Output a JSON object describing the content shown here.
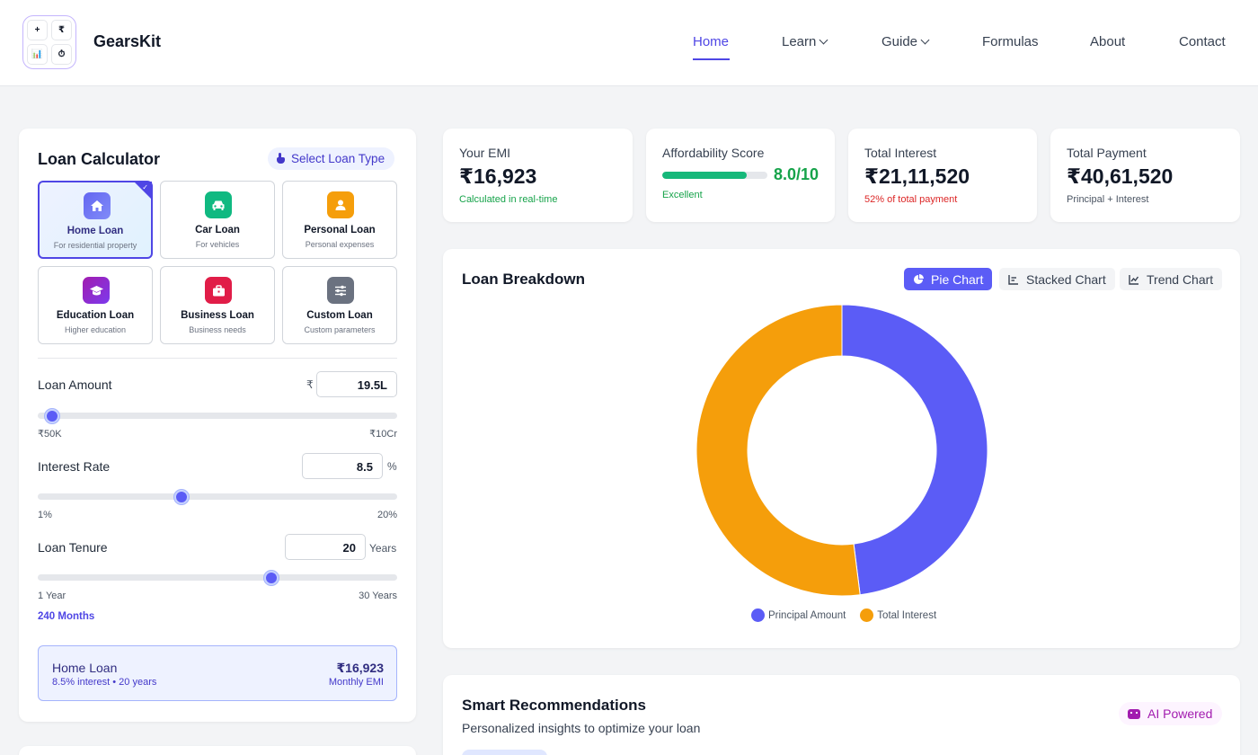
{
  "brand": {
    "name": "GearsKit",
    "logo_cells": [
      "+",
      "₹",
      "📊",
      "⏱"
    ]
  },
  "nav": {
    "items": [
      {
        "label": "Home",
        "active": true
      },
      {
        "label": "Learn",
        "dropdown": true
      },
      {
        "label": "Guide",
        "dropdown": true
      },
      {
        "label": "Formulas"
      },
      {
        "label": "About"
      },
      {
        "label": "Contact"
      }
    ]
  },
  "calculator": {
    "title": "Loan Calculator",
    "select_type_label": "Select Loan Type",
    "loan_types": [
      {
        "name": "Home Loan",
        "sub": "For residential property",
        "icon": "home-icon",
        "color": "#6366f1",
        "active": true
      },
      {
        "name": "Car Loan",
        "sub": "For vehicles",
        "icon": "car-icon",
        "color": "#10b981"
      },
      {
        "name": "Personal Loan",
        "sub": "Personal expenses",
        "icon": "user-icon",
        "color": "#f59e0b"
      },
      {
        "name": "Education Loan",
        "sub": "Higher education",
        "icon": "graduation-cap-icon",
        "color": "#a21caf"
      },
      {
        "name": "Business Loan",
        "sub": "Business needs",
        "icon": "briefcase-icon",
        "color": "#e11d48"
      },
      {
        "name": "Custom Loan",
        "sub": "Custom parameters",
        "icon": "sliders-icon",
        "color": "#6b7280"
      }
    ],
    "amount": {
      "label": "Loan Amount",
      "currency": "₹",
      "value": "19.5L",
      "min": "₹50K",
      "max": "₹10Cr",
      "slider_fraction": 0.04
    },
    "rate": {
      "label": "Interest Rate",
      "value": "8.5",
      "unit": "%",
      "min": "1%",
      "max": "20%",
      "slider_fraction": 0.4
    },
    "tenure": {
      "label": "Loan Tenure",
      "value": "20",
      "unit": "Years",
      "min": "1 Year",
      "max": "30 Years",
      "slider_fraction": 0.65,
      "months": "240 Months"
    },
    "summary": {
      "name": "Home Loan",
      "detail": "8.5% interest • 20 years",
      "emi": "₹16,923",
      "emi_label": "Monthly EMI"
    }
  },
  "stats": {
    "emi": {
      "title": "Your EMI",
      "value": "₹16,923",
      "sub": "Calculated in real-time",
      "sub_color": "#16a34a"
    },
    "affordability": {
      "title": "Affordability Score",
      "score": "8.0/10",
      "fraction": 0.8,
      "rating": "Excellent"
    },
    "interest": {
      "title": "Total Interest",
      "value": "₹21,11,520",
      "sub": "52% of total payment",
      "sub_color": "#dc2626"
    },
    "payment": {
      "title": "Total Payment",
      "value": "₹40,61,520",
      "sub": "Principal + Interest"
    }
  },
  "breakdown": {
    "title": "Loan Breakdown",
    "buttons": {
      "pie": "Pie Chart",
      "stacked": "Stacked Chart",
      "trend": "Trend Chart"
    },
    "legend": {
      "principal": "Principal Amount",
      "interest": "Total Interest"
    }
  },
  "chart_data": {
    "type": "pie",
    "donut": true,
    "slices": [
      {
        "label": "Principal Amount",
        "value": 1950000,
        "color": "#5b5cf6"
      },
      {
        "label": "Total Interest",
        "value": 2111520,
        "color": "#f59e0b"
      }
    ],
    "legend_position": "bottom"
  },
  "recommendations": {
    "title": "Smart Recommendations",
    "subtitle": "Personalized insights to optimize your loan",
    "badge": "AI Powered"
  }
}
